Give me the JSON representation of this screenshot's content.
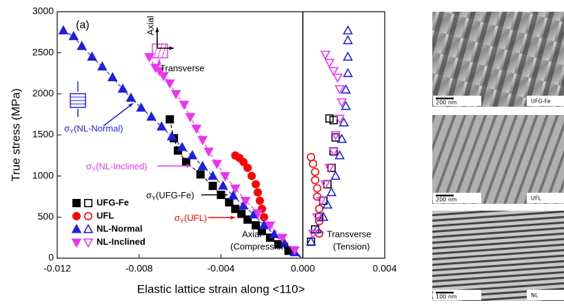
{
  "chart_data": {
    "type": "scatter",
    "xlabel": "Elastic lattice strain along <110>",
    "ylabel": "True stress (MPa)",
    "xlim": [
      -0.012,
      0.004
    ],
    "ylim": [
      0,
      3000
    ],
    "xticks": [
      -0.012,
      -0.008,
      -0.004,
      {
        "value": 0,
        "label": "0.000"
      },
      0.004
    ],
    "yticks": [
      0,
      500,
      1000,
      1500,
      2000,
      2500,
      3000
    ],
    "series": [
      {
        "name": "UFG-Fe",
        "color": "#000000",
        "marker": "square",
        "dashed": true,
        "axial_x": [
          -0.0065,
          -0.0063,
          -0.0061,
          -0.0057,
          -0.005,
          -0.0044,
          -0.004,
          -0.0036,
          -0.0033,
          -0.003,
          -0.0027,
          -0.0023,
          -0.002,
          -0.0016,
          -0.0012,
          -0.0007
        ],
        "axial_y": [
          1690,
          1460,
          1310,
          1170,
          1020,
          880,
          770,
          680,
          600,
          540,
          470,
          400,
          330,
          250,
          170,
          90
        ],
        "transverse_x": [
          0.0013,
          0.0015,
          0.0016,
          0.0015,
          0.0014,
          0.0012,
          0.001,
          0.0008,
          0.0006,
          0.0004
        ],
        "transverse_y": [
          1700,
          1680,
          1470,
          1300,
          1100,
          900,
          700,
          500,
          350,
          200
        ]
      },
      {
        "name": "UFL",
        "color": "#ff0000",
        "marker": "circle",
        "dashed": false,
        "axial_x": [
          -0.0033,
          -0.0031,
          -0.0029,
          -0.0027,
          -0.0025,
          -0.0023,
          -0.0022,
          -0.0021,
          -0.002,
          -0.0019
        ],
        "axial_y": [
          1250,
          1220,
          1170,
          1100,
          1000,
          900,
          800,
          700,
          600,
          500
        ],
        "transverse_x": [
          0.0004,
          0.0005,
          0.0006,
          0.0006,
          0.0007,
          0.0007,
          0.0008,
          0.0008,
          0.0008
        ],
        "transverse_y": [
          1230,
          1150,
          1050,
          950,
          850,
          750,
          600,
          450,
          300
        ]
      },
      {
        "name": "NL-Normal",
        "color": "#1f1fe0",
        "marker": "triangle-up",
        "dashed": true,
        "axial_x": [
          -0.0117,
          -0.0112,
          -0.0108,
          -0.0103,
          -0.0098,
          -0.0093,
          -0.0088,
          -0.0084,
          -0.0079,
          -0.0074,
          -0.0069,
          -0.0064,
          -0.0059,
          -0.0054,
          -0.0049,
          -0.0044,
          -0.0039,
          -0.0034,
          -0.0029,
          -0.0024,
          -0.0019,
          -0.0014,
          -0.0009,
          -0.0004
        ],
        "axial_y": [
          2770,
          2700,
          2580,
          2450,
          2330,
          2200,
          2060,
          1950,
          1830,
          1720,
          1600,
          1480,
          1350,
          1250,
          1120,
          1000,
          880,
          760,
          640,
          530,
          400,
          290,
          180,
          70
        ],
        "transverse_x": [
          0.0004,
          0.0007,
          0.001,
          0.0012,
          0.0014,
          0.0016,
          0.0018,
          0.0019,
          0.002,
          0.0021,
          0.0021,
          0.0022,
          0.0022,
          0.0022,
          0.0022
        ],
        "transverse_y": [
          200,
          350,
          500,
          650,
          800,
          1000,
          1250,
          1450,
          1650,
          1850,
          2050,
          2250,
          2450,
          2650,
          2770
        ]
      },
      {
        "name": "NL-Inclined",
        "color": "#ee33ee",
        "marker": "triangle-down",
        "dashed": true,
        "axial_x": [
          -0.0075,
          -0.0072,
          -0.007,
          -0.0068,
          -0.0065,
          -0.0062,
          -0.0058,
          -0.0055,
          -0.0052,
          -0.0049,
          -0.0046,
          -0.0042,
          -0.0038,
          -0.0033,
          -0.0028,
          -0.0022,
          -0.0016,
          -0.001,
          -0.0004
        ],
        "axial_y": [
          2450,
          2320,
          2280,
          2220,
          2130,
          2000,
          1870,
          1720,
          1580,
          1440,
          1300,
          1150,
          1000,
          850,
          700,
          550,
          400,
          250,
          100
        ],
        "transverse_x": [
          0.0011,
          0.0013,
          0.0015,
          0.0017,
          0.0018,
          0.0019,
          0.0018,
          0.0016,
          0.0015,
          0.0013,
          0.0011,
          0.0009,
          0.0007,
          0.0005
        ],
        "transverse_y": [
          2480,
          2380,
          2280,
          2200,
          2060,
          1900,
          1700,
          1500,
          1300,
          1100,
          900,
          700,
          500,
          300
        ]
      }
    ],
    "annotations": [
      {
        "text": "(a)",
        "color": "#000000"
      },
      {
        "sigma": "σ",
        "sub": "Y",
        "text": "(NL-Normal)",
        "color": "#1f1fe0"
      },
      {
        "sigma": "σ",
        "sub": "Y",
        "text": "(NL-Inclined)",
        "color": "#ee33ee"
      },
      {
        "sigma": "σ",
        "sub": "Y",
        "text": "(UFG-Fe)",
        "color": "#000000"
      },
      {
        "sigma": "σ",
        "sub": "Y",
        "text": "(UFL)",
        "color": "#ff0000"
      },
      {
        "text": "Axial",
        "color": "#000000"
      },
      {
        "text": "(Compression)",
        "color": "#000000"
      },
      {
        "text": "Transverse",
        "color": "#000000"
      },
      {
        "text": "(Tension)",
        "color": "#000000"
      },
      {
        "text": "Axial",
        "color": "#000000"
      },
      {
        "text": "Transverse",
        "color": "#000000"
      }
    ]
  },
  "panels": [
    {
      "scale": "200 nm",
      "label": "UFG-Fe"
    },
    {
      "scale": "200 nm",
      "label": "UFL"
    },
    {
      "scale": "100 nm",
      "label": "NL"
    }
  ]
}
